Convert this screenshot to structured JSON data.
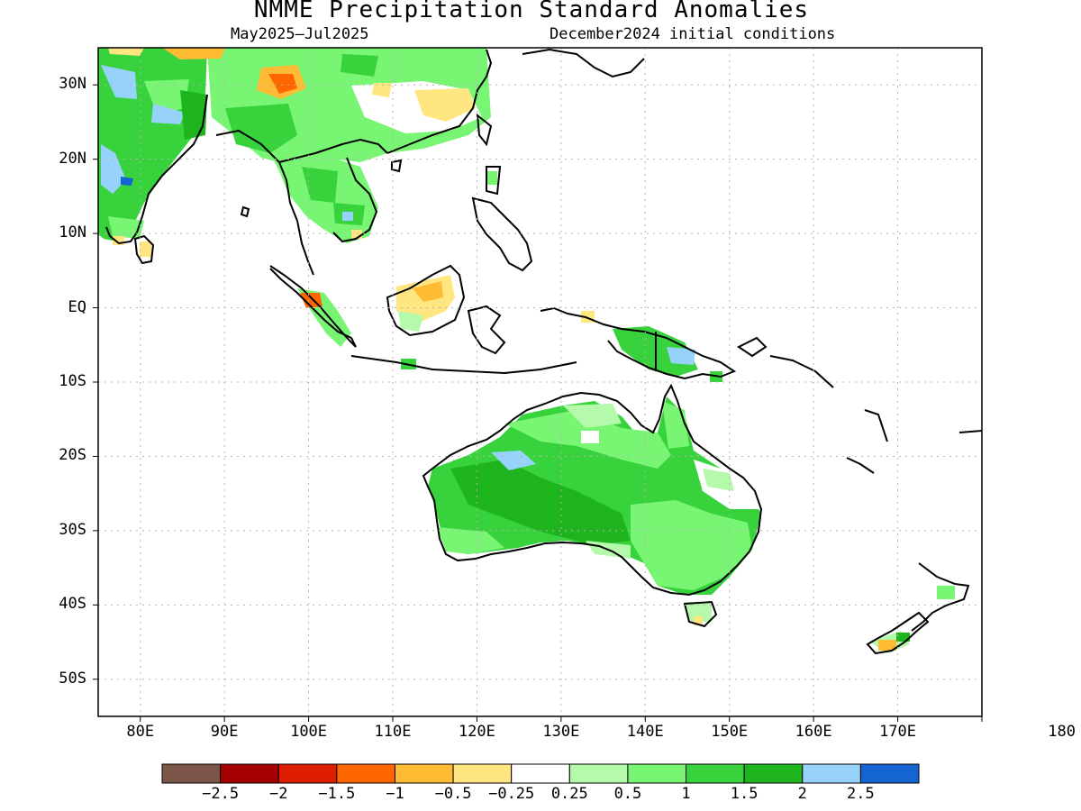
{
  "title": "NMME Precipitation Standard Anomalies",
  "subtitle_left": "May2025–Jul2025",
  "subtitle_right": "December2024 initial conditions",
  "map": {
    "lon_range": [
      75,
      180
    ],
    "lat_range": [
      -55,
      35
    ],
    "lat_ticks": [
      {
        "value": 30,
        "label": "30N"
      },
      {
        "value": 20,
        "label": "20N"
      },
      {
        "value": 10,
        "label": "10N"
      },
      {
        "value": 0,
        "label": "EQ"
      },
      {
        "value": -10,
        "label": "10S"
      },
      {
        "value": -20,
        "label": "20S"
      },
      {
        "value": -30,
        "label": "30S"
      },
      {
        "value": -40,
        "label": "40S"
      },
      {
        "value": -50,
        "label": "50S"
      }
    ],
    "lon_ticks": [
      {
        "value": 80,
        "label": "80E"
      },
      {
        "value": 90,
        "label": "90E"
      },
      {
        "value": 100,
        "label": "100E"
      },
      {
        "value": 110,
        "label": "110E"
      },
      {
        "value": 120,
        "label": "120E"
      },
      {
        "value": 130,
        "label": "130E"
      },
      {
        "value": 140,
        "label": "140E"
      },
      {
        "value": 150,
        "label": "150E"
      },
      {
        "value": 160,
        "label": "160E"
      },
      {
        "value": 170,
        "label": "170E"
      },
      {
        "value": 180,
        "label": "180"
      }
    ],
    "grid": "dotted"
  },
  "colorbar": {
    "colors": [
      "#7b5648",
      "#a50000",
      "#dd1c00",
      "#ff6600",
      "#ffbb33",
      "#ffe680",
      "#ffffff",
      "#b4faaa",
      "#78f573",
      "#37d23c",
      "#1eb41e",
      "#96d2fa",
      "#1464d2"
    ],
    "labels": [
      "−2.5",
      "−2",
      "−1.5",
      "−1",
      "−0.5",
      "−0.25",
      "0.25",
      "0.5",
      "1",
      "1.5",
      "2",
      "2.5"
    ]
  }
}
